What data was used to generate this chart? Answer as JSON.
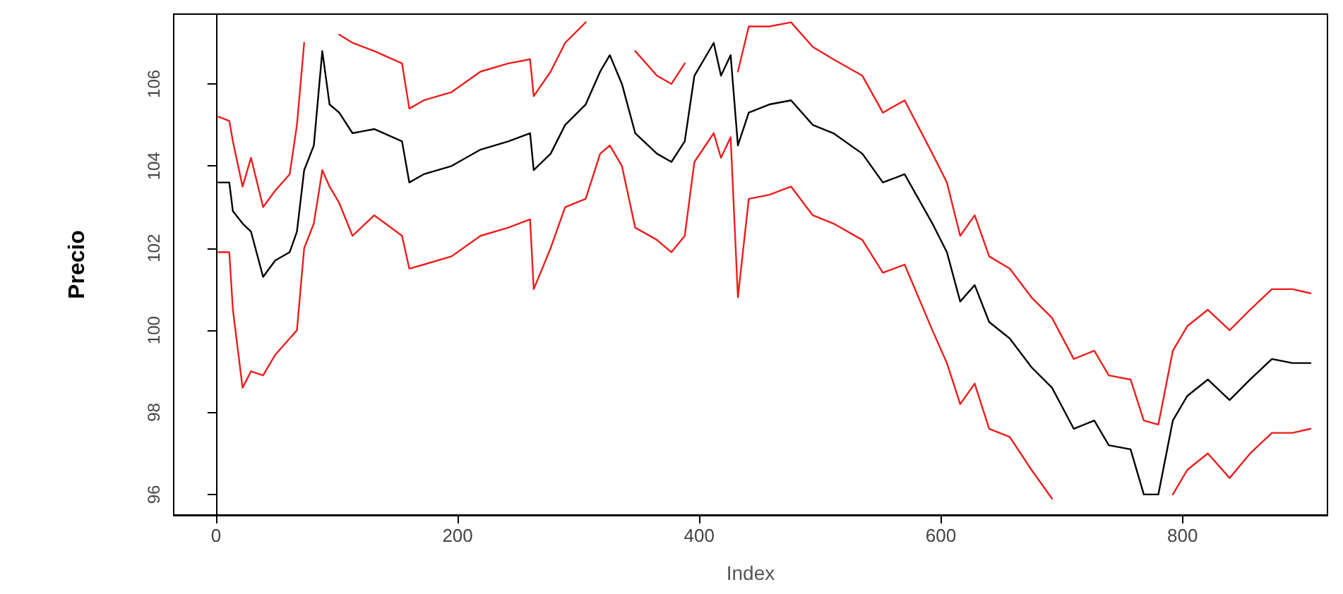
{
  "chart_data": {
    "type": "line",
    "xlabel": "Index",
    "ylabel": "Precio",
    "marker": "none",
    "line_style": "solid",
    "x": [
      2,
      11,
      14,
      22,
      29,
      39,
      49,
      61,
      67,
      73,
      81,
      88,
      94,
      102,
      113,
      131,
      154,
      160,
      172,
      195,
      219,
      242,
      260,
      263,
      277,
      289,
      306,
      318,
      326,
      336,
      347,
      365,
      377,
      388,
      396,
      412,
      418,
      426,
      432,
      441,
      458,
      476,
      494,
      511,
      535,
      552,
      570,
      593,
      605,
      616,
      628,
      640,
      657,
      675,
      692,
      710,
      727,
      739,
      757,
      768,
      780,
      792,
      804,
      821,
      839,
      856,
      874,
      891,
      906
    ],
    "xlim": [
      -35,
      920
    ],
    "xticks": [
      0,
      200,
      400,
      600,
      800
    ],
    "ylim": [
      95.5,
      107.7
    ],
    "yticks": [
      96,
      98,
      100,
      102,
      104,
      106
    ],
    "series": [
      {
        "color": "#ee1c1c",
        "values": [
          105.2,
          105.1,
          104.6,
          103.5,
          104.2,
          103.0,
          103.4,
          103.8,
          105.0,
          107.0,
          null,
          null,
          null,
          107.2,
          107.0,
          106.8,
          106.5,
          105.4,
          105.6,
          105.8,
          106.3,
          106.5,
          106.6,
          105.7,
          106.3,
          107.0,
          107.5,
          null,
          null,
          null,
          106.8,
          106.2,
          106.0,
          106.5,
          null,
          null,
          null,
          null,
          106.3,
          107.4,
          107.4,
          107.5,
          106.9,
          106.6,
          106.2,
          105.3,
          105.6,
          104.3,
          103.6,
          102.3,
          102.8,
          101.8,
          101.5,
          100.8,
          100.3,
          99.3,
          99.5,
          98.9,
          98.8,
          97.8,
          97.7,
          99.5,
          100.1,
          100.5,
          100.0,
          100.5,
          101.0,
          101.0,
          100.9
        ]
      },
      {
        "color": "#ee1c1c",
        "values": [
          101.9,
          101.9,
          100.5,
          98.6,
          99.0,
          98.9,
          99.4,
          99.8,
          100.0,
          102.0,
          102.6,
          103.9,
          103.5,
          103.1,
          102.3,
          102.8,
          102.3,
          101.5,
          101.6,
          101.8,
          102.3,
          102.5,
          102.7,
          101.0,
          102.0,
          103.0,
          103.2,
          104.3,
          104.5,
          104.0,
          102.5,
          102.2,
          101.9,
          102.3,
          104.1,
          104.8,
          104.2,
          104.7,
          100.8,
          103.2,
          103.3,
          103.5,
          102.8,
          102.6,
          102.2,
          101.4,
          101.6,
          100.0,
          99.2,
          98.2,
          98.7,
          97.6,
          97.4,
          96.6,
          95.9,
          null,
          null,
          null,
          null,
          null,
          null,
          96.0,
          96.6,
          97.0,
          96.4,
          97.0,
          97.5,
          97.5,
          97.6
        ]
      },
      {
        "color": "#000000",
        "values": [
          103.6,
          103.6,
          102.9,
          102.6,
          102.4,
          101.3,
          101.7,
          101.9,
          102.4,
          103.9,
          104.5,
          106.8,
          105.5,
          105.3,
          104.8,
          104.9,
          104.6,
          103.6,
          103.8,
          104.0,
          104.4,
          104.6,
          104.8,
          103.9,
          104.3,
          105.0,
          105.5,
          106.3,
          106.7,
          106.0,
          104.8,
          104.3,
          104.1,
          104.6,
          106.2,
          107.0,
          106.2,
          106.7,
          104.5,
          105.3,
          105.5,
          105.6,
          105.0,
          104.8,
          104.3,
          103.6,
          103.8,
          102.6,
          101.9,
          100.7,
          101.1,
          100.2,
          99.8,
          99.1,
          98.6,
          97.6,
          97.8,
          97.2,
          97.1,
          96.0,
          96.0,
          97.8,
          98.4,
          98.8,
          98.3,
          98.8,
          99.3,
          99.2,
          99.2
        ]
      }
    ]
  }
}
